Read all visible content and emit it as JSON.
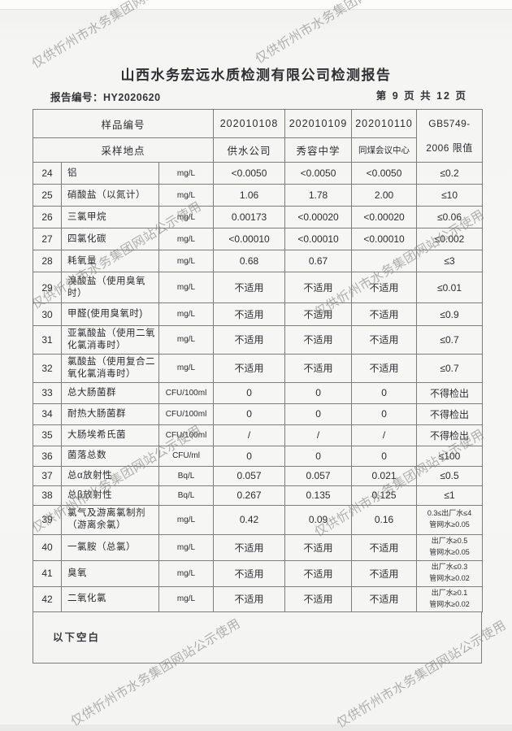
{
  "watermark": {
    "text": "仅供忻州市水务集团网站公示使用"
  },
  "header": {
    "title": "山西水务宏远水质检测有限公司检测报告",
    "report_no_label": "报告编号：",
    "report_no": "HY2020620",
    "page_info": "第 9 页 共 12 页"
  },
  "table": {
    "sample_id_label": "样品编号",
    "location_label": "采样地点",
    "sample_ids": [
      "202010108",
      "202010109",
      "202010110"
    ],
    "locations": [
      "供水公司",
      "秀容中学",
      "同煤会议中心"
    ],
    "limit_header": "GB5749-\n2006 限值",
    "rows": [
      {
        "no": "24",
        "name": "铝",
        "unit": "mg/L",
        "v1": "<0.0050",
        "v2": "<0.0050",
        "v3": "<0.0050",
        "limit": "≤0.2"
      },
      {
        "no": "25",
        "name": "硝酸盐（以氮计）",
        "unit": "mg/L",
        "v1": "1.06",
        "v2": "1.78",
        "v3": "2.00",
        "limit": "≤10"
      },
      {
        "no": "26",
        "name": "三氯甲烷",
        "unit": "mg/L",
        "v1": "0.00173",
        "v2": "<0.00020",
        "v3": "<0.00020",
        "limit": "≤0.06"
      },
      {
        "no": "27",
        "name": "四氯化碳",
        "unit": "mg/L",
        "v1": "<0.00010",
        "v2": "<0.00010",
        "v3": "<0.00010",
        "limit": "≤0.002"
      },
      {
        "no": "28",
        "name": "耗氧量",
        "unit": "mg/L",
        "v1": "0.68",
        "v2": "0.67",
        "v3": "",
        "limit": "≤3"
      },
      {
        "no": "29",
        "name": "溴酸盐（使用臭氧时）",
        "unit": "mg/L",
        "v1": "不适用",
        "v2": "不适用",
        "v3": "不适用",
        "limit": "≤0.01"
      },
      {
        "no": "30",
        "name": "甲醛(使用臭氧时)",
        "unit": "mg/L",
        "v1": "不适用",
        "v2": "不适用",
        "v3": "不适用",
        "limit": "≤0.9"
      },
      {
        "no": "31",
        "name": "亚氯酸盐（使用二氧化氯消毒时）",
        "unit": "mg/L",
        "v1": "不适用",
        "v2": "不适用",
        "v3": "不适用",
        "limit": "≤0.7"
      },
      {
        "no": "32",
        "name": "氯酸盐（使用复合二氧化氯消毒时）",
        "unit": "mg/L",
        "v1": "不适用",
        "v2": "不适用",
        "v3": "不适用",
        "limit": "≤0.7"
      },
      {
        "no": "33",
        "name": "总大肠菌群",
        "unit": "CFU/100ml",
        "v1": "0",
        "v2": "0",
        "v3": "0",
        "limit": "不得检出"
      },
      {
        "no": "34",
        "name": "耐热大肠菌群",
        "unit": "CFU/100ml",
        "v1": "0",
        "v2": "0",
        "v3": "0",
        "limit": "不得检出"
      },
      {
        "no": "35",
        "name": "大肠埃希氏菌",
        "unit": "CFU/100ml",
        "v1": "/",
        "v2": "/",
        "v3": "/",
        "limit": "不得检出"
      },
      {
        "no": "36",
        "name": "菌落总数",
        "unit": "CFU/ml",
        "v1": "0",
        "v2": "0",
        "v3": "0",
        "limit": "≤100"
      },
      {
        "no": "37",
        "name": "总α放射性",
        "unit": "Bq/L",
        "v1": "0.057",
        "v2": "0.057",
        "v3": "0.021",
        "limit": "≤0.5"
      },
      {
        "no": "38",
        "name": "总β放射性",
        "unit": "Bq/L",
        "v1": "0.267",
        "v2": "0.135",
        "v3": "0.125",
        "limit": "≤1"
      },
      {
        "no": "39",
        "name": "氯气及游离氯制剂（游离余氯）",
        "unit": "mg/L",
        "v1": "0.42",
        "v2": "0.09",
        "v3": "0.16",
        "limit": "0.3≤出厂水≤4\n管网水≥0.05"
      },
      {
        "no": "40",
        "name": "一氯胺（总氯）",
        "unit": "mg/L",
        "v1": "不适用",
        "v2": "不适用",
        "v3": "不适用",
        "limit": "出厂水≥0.5\n管网水≥0.05"
      },
      {
        "no": "41",
        "name": "臭氧",
        "unit": "mg/L",
        "v1": "不适用",
        "v2": "不适用",
        "v3": "不适用",
        "limit": "出厂水≤0.3\n管网水≥0.02"
      },
      {
        "no": "42",
        "name": "二氧化氯",
        "unit": "mg/L",
        "v1": "不适用",
        "v2": "不适用",
        "v3": "不适用",
        "limit": "出厂水≥0.1\n管网水≥0.02"
      }
    ],
    "footer_note": "以下空白"
  }
}
